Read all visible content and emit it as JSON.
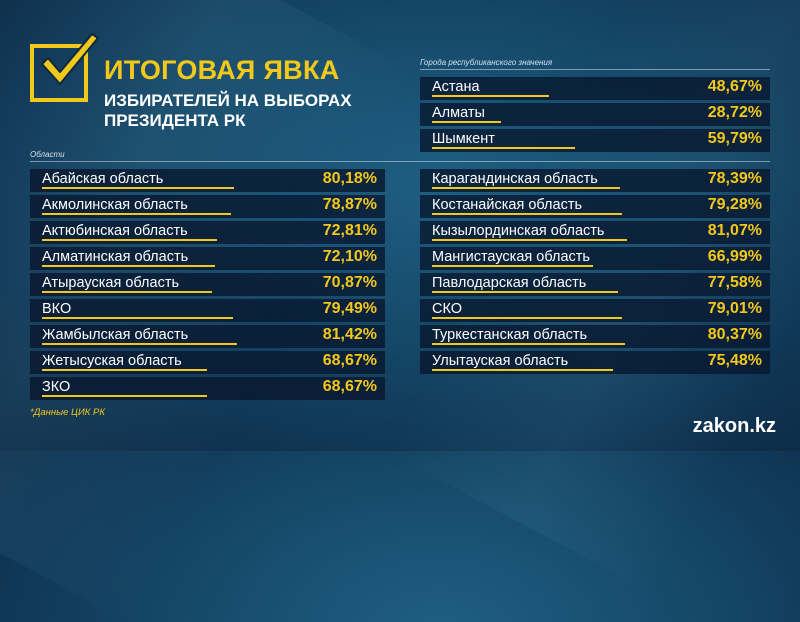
{
  "header": {
    "title_line1": "ИТОГОВАЯ ЯВКА",
    "title_line2": "ИЗБИРАТЕЛЕЙ НА ВЫБОРАХ",
    "title_line3": "ПРЕЗИДЕНТА РК"
  },
  "colors": {
    "accent": "#f2c81a",
    "row_bg": "#08162d",
    "text": "#ffffff"
  },
  "chart_data": [
    {
      "type": "bar",
      "title": "Города республиканского значения",
      "categories": [
        "Астана",
        "Алматы",
        "Шымкент"
      ],
      "values": [
        48.67,
        28.72,
        59.79
      ],
      "labels": [
        "48,67%",
        "28,72%",
        "59,79%"
      ],
      "ylim": [
        0,
        100
      ]
    },
    {
      "type": "bar",
      "title": "Области",
      "categories": [
        "Абайская область",
        "Акмолинская область",
        "Актюбинская область",
        "Алматинская область",
        "Атырауская область",
        "ВКО",
        "Жамбылская область",
        "Жетысуская область",
        "ЗКО",
        "Карагандинская область",
        "Костанайская область",
        "Кызылординская область",
        "Мангистауская область",
        "Павлодарская область",
        "СКО",
        "Туркестанская область",
        "Улытауская область"
      ],
      "values": [
        80.18,
        78.87,
        72.81,
        72.1,
        70.87,
        79.49,
        81.42,
        68.67,
        68.67,
        78.39,
        79.28,
        81.07,
        66.99,
        77.58,
        79.01,
        80.37,
        75.48
      ],
      "labels": [
        "80,18%",
        "78,87%",
        "72,81%",
        "72,10%",
        "70,87%",
        "79,49%",
        "81,42%",
        "68,67%",
        "68,67%",
        "78,39%",
        "79,28%",
        "81,07%",
        "66,99%",
        "77,58%",
        "79,01%",
        "80,37%",
        "75,48%"
      ],
      "ylim": [
        0,
        100
      ]
    }
  ],
  "footnote": "*Данные ЦИК РК",
  "brand": "zakon.kz"
}
